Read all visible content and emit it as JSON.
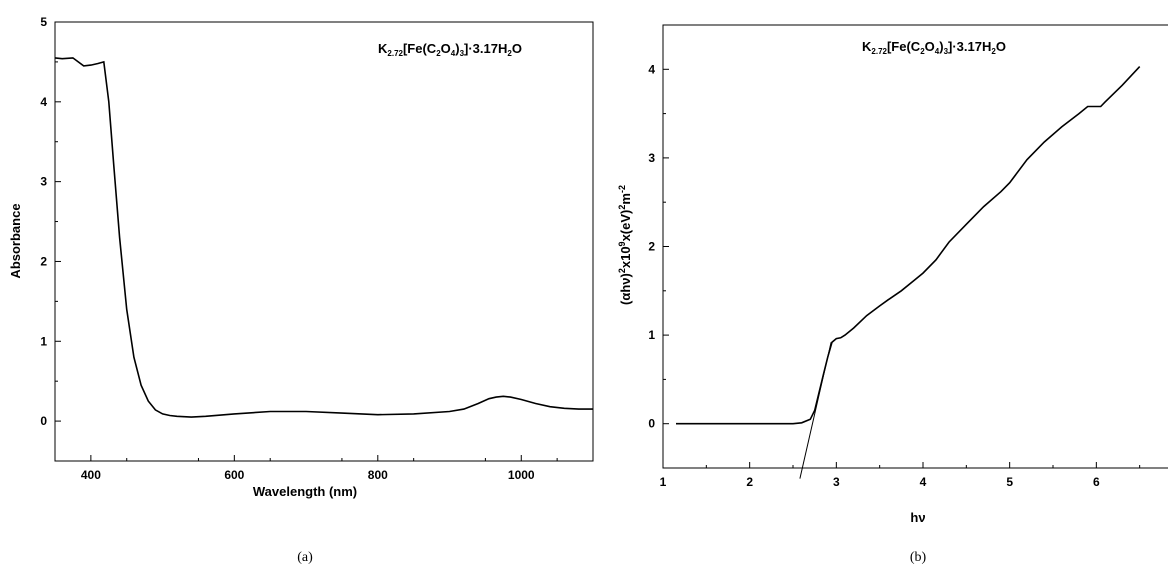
{
  "chart_data": [
    {
      "type": "line",
      "title": "K2.72[Fe(C2O4)3]·3.17H2O",
      "xlabel": "Wavelength (nm)",
      "ylabel": "Absorbance",
      "xlim": [
        350,
        1100
      ],
      "ylim": [
        -0.5,
        5
      ],
      "xticks": [
        400,
        600,
        800,
        1000
      ],
      "yticks": [
        0,
        1,
        2,
        3,
        4,
        5
      ],
      "caption": "(a)",
      "grid": false,
      "series": [
        {
          "x": [
            350,
            360,
            375,
            390,
            400,
            410,
            418,
            425,
            432,
            440,
            450,
            460,
            470,
            480,
            490,
            500,
            510,
            520,
            540,
            560,
            600,
            650,
            700,
            750,
            800,
            850,
            900,
            920,
            940,
            955,
            965,
            975,
            985,
            1000,
            1020,
            1040,
            1060,
            1080,
            1100
          ],
          "y": [
            4.55,
            4.54,
            4.55,
            4.45,
            4.46,
            4.48,
            4.5,
            4.0,
            3.2,
            2.3,
            1.4,
            0.8,
            0.45,
            0.25,
            0.14,
            0.09,
            0.07,
            0.06,
            0.05,
            0.06,
            0.09,
            0.12,
            0.12,
            0.1,
            0.08,
            0.09,
            0.12,
            0.15,
            0.22,
            0.28,
            0.3,
            0.31,
            0.3,
            0.27,
            0.22,
            0.18,
            0.16,
            0.15,
            0.15
          ]
        }
      ]
    },
    {
      "type": "line",
      "title": "K2.72[Fe(C2O4)3]·3.17H2O",
      "xlabel": "hν",
      "ylabel": "(αhν)²x10⁹x(eV)²m⁻²",
      "xlim": [
        1,
        7
      ],
      "ylim": [
        -0.5,
        4.5
      ],
      "xticks": [
        1,
        2,
        3,
        4,
        5,
        6
      ],
      "yticks": [
        0,
        1,
        2,
        3,
        4
      ],
      "caption": "(b)",
      "grid": false,
      "series": [
        {
          "x": [
            1.15,
            1.5,
            2.0,
            2.5,
            2.6,
            2.7,
            2.75,
            2.8,
            2.85,
            2.9,
            2.95,
            3.0,
            3.05,
            3.1,
            3.2,
            3.35,
            3.5,
            3.6,
            3.75,
            3.9,
            4.0,
            4.15,
            4.3,
            4.5,
            4.7,
            4.9,
            5.0,
            5.2,
            5.4,
            5.6,
            5.8,
            5.9,
            6.0,
            6.05,
            6.1,
            6.3,
            6.5
          ],
          "y": [
            0,
            0,
            0,
            0,
            0.01,
            0.05,
            0.15,
            0.35,
            0.55,
            0.75,
            0.92,
            0.96,
            0.97,
            1.0,
            1.08,
            1.22,
            1.33,
            1.4,
            1.5,
            1.62,
            1.7,
            1.85,
            2.05,
            2.25,
            2.45,
            2.62,
            2.72,
            2.98,
            3.18,
            3.35,
            3.5,
            3.58,
            3.58,
            3.58,
            3.63,
            3.82,
            4.03
          ]
        },
        {
          "x": [
            2.58,
            2.94
          ],
          "y": [
            -0.62,
            0.92
          ]
        }
      ]
    }
  ]
}
